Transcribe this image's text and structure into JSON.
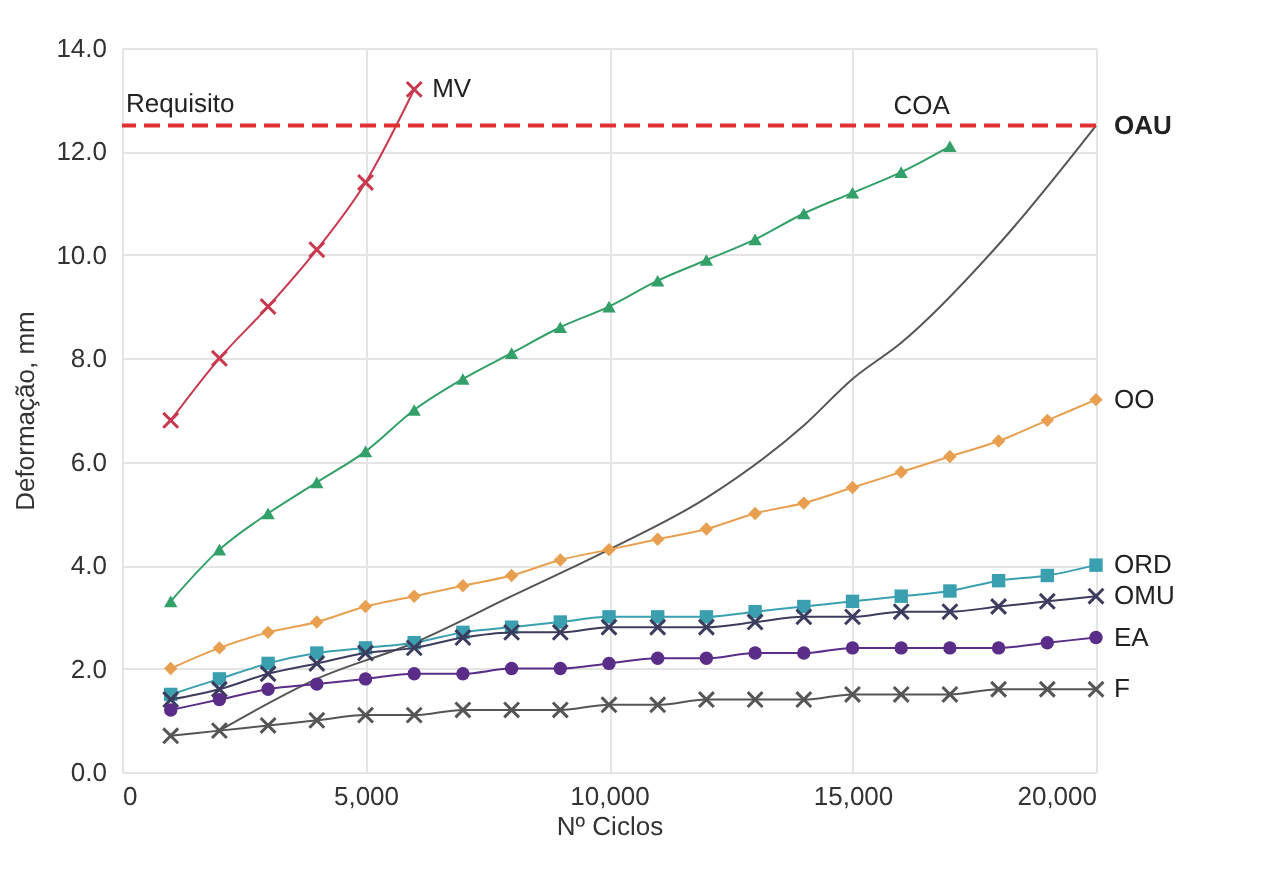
{
  "chart_data": {
    "type": "line",
    "xlabel": "Nº Ciclos",
    "ylabel": "Deformação, mm",
    "xlim": [
      0,
      20000
    ],
    "ylim": [
      0,
      14
    ],
    "xticks": [
      0,
      {
        "value": 5000,
        "label": "5,000"
      },
      {
        "value": 10000,
        "label": "10,000"
      },
      {
        "value": 15000,
        "label": "15,000"
      },
      {
        "value": 20000,
        "label": "20,000"
      }
    ],
    "yticks": [
      {
        "value": 0,
        "label": "0.0"
      },
      {
        "value": 2,
        "label": "2.0"
      },
      {
        "value": 4,
        "label": "4.0"
      },
      {
        "value": 6,
        "label": "6.0"
      },
      {
        "value": 8,
        "label": "8.0"
      },
      {
        "value": 10,
        "label": "10.0"
      },
      {
        "value": 12,
        "label": "12.0"
      },
      {
        "value": 14,
        "label": "14.0"
      }
    ],
    "grid": true,
    "legend": false,
    "x": [
      1000,
      2000,
      3000,
      4000,
      5000,
      6000,
      7000,
      8000,
      9000,
      10000,
      11000,
      12000,
      13000,
      14000,
      15000,
      16000,
      17000,
      18000,
      19000,
      20000
    ],
    "series": [
      {
        "name": "MV",
        "color": "#c8384e",
        "marker": "cross",
        "x": [
          1000,
          2000,
          3000,
          4000,
          5000,
          6000
        ],
        "values": [
          6.8,
          8.0,
          9.0,
          10.1,
          11.4,
          13.2
        ]
      },
      {
        "name": "COA",
        "color": "#33a06a",
        "marker": "triangle",
        "x": [
          1000,
          2000,
          3000,
          4000,
          5000,
          6000,
          7000,
          8000,
          9000,
          10000,
          11000,
          12000,
          13000,
          14000,
          15000,
          16000,
          17000
        ],
        "values": [
          3.3,
          4.3,
          5.0,
          5.6,
          6.2,
          7.0,
          7.6,
          8.1,
          8.6,
          9.0,
          9.5,
          9.9,
          10.3,
          10.8,
          11.2,
          11.6,
          12.1
        ]
      },
      {
        "name": "OAU",
        "color": "#555555",
        "marker": "none",
        "x": [
          2000,
          4000,
          6000,
          8000,
          10000,
          12000,
          14000,
          15000,
          16000,
          18000,
          20000
        ],
        "values": [
          0.8,
          1.8,
          2.5,
          3.4,
          4.3,
          5.3,
          6.7,
          7.6,
          8.3,
          10.2,
          12.5
        ]
      },
      {
        "name": "OO",
        "color": "#e8a050",
        "marker": "diamond",
        "values": [
          2.0,
          2.4,
          2.7,
          2.9,
          3.2,
          3.4,
          3.6,
          3.8,
          4.1,
          4.3,
          4.5,
          4.7,
          5.0,
          5.2,
          5.5,
          5.8,
          6.1,
          6.4,
          6.8,
          7.2
        ]
      },
      {
        "name": "ORD",
        "color": "#3aa0b0",
        "marker": "square",
        "values": [
          1.5,
          1.8,
          2.1,
          2.3,
          2.4,
          2.5,
          2.7,
          2.8,
          2.9,
          3.0,
          3.0,
          3.0,
          3.1,
          3.2,
          3.3,
          3.4,
          3.5,
          3.7,
          3.8,
          4.0
        ]
      },
      {
        "name": "OMU",
        "color": "#3c3c5e",
        "marker": "cross",
        "values": [
          1.4,
          1.6,
          1.9,
          2.1,
          2.3,
          2.4,
          2.6,
          2.7,
          2.7,
          2.8,
          2.8,
          2.8,
          2.9,
          3.0,
          3.0,
          3.1,
          3.1,
          3.2,
          3.3,
          3.4
        ]
      },
      {
        "name": "EA",
        "color": "#5a2d88",
        "marker": "circle",
        "values": [
          1.2,
          1.4,
          1.6,
          1.7,
          1.8,
          1.9,
          1.9,
          2.0,
          2.0,
          2.1,
          2.2,
          2.2,
          2.3,
          2.3,
          2.4,
          2.4,
          2.4,
          2.4,
          2.5,
          2.6
        ]
      },
      {
        "name": "F",
        "color": "#555555",
        "marker": "cross",
        "values": [
          0.7,
          0.8,
          0.9,
          1.0,
          1.1,
          1.1,
          1.2,
          1.2,
          1.2,
          1.3,
          1.3,
          1.4,
          1.4,
          1.4,
          1.5,
          1.5,
          1.5,
          1.6,
          1.6,
          1.6
        ]
      }
    ],
    "ref_lines": [
      {
        "axis": "y",
        "value": 12.5,
        "label": "Requisito",
        "color": "#e03030",
        "line_style": "dashed"
      }
    ]
  }
}
